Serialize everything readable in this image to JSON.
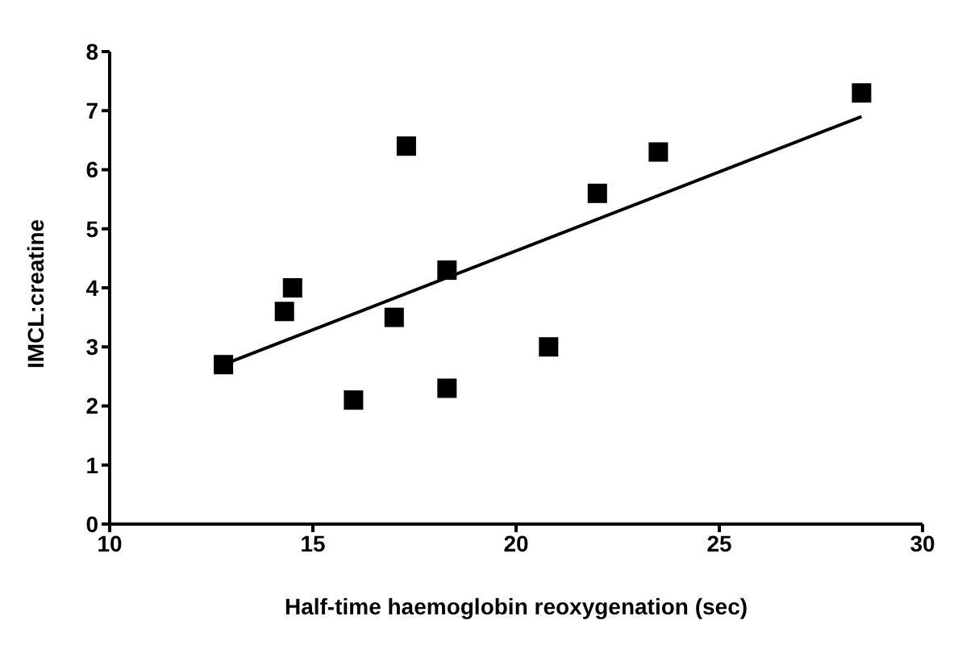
{
  "chart_data": {
    "type": "scatter",
    "xlabel": "Half-time haemoglobin reoxygenation (sec)",
    "ylabel": "IMCL:creatine",
    "xlim": [
      10,
      30
    ],
    "xticks": [
      10,
      15,
      20,
      25,
      30
    ],
    "ylim": [
      0,
      8
    ],
    "yticks": [
      0,
      1,
      2,
      3,
      4,
      5,
      6,
      7,
      8
    ],
    "grid": false,
    "legend": false,
    "marker": "square",
    "series": [
      {
        "color": "#000000",
        "x": [
          12.8,
          14.3,
          14.5,
          16.0,
          17.0,
          17.3,
          18.3,
          18.3,
          20.8,
          22.0,
          23.5,
          28.5
        ],
        "values": [
          2.7,
          3.6,
          4.0,
          2.1,
          3.5,
          6.4,
          4.3,
          2.3,
          3.0,
          5.6,
          6.3,
          7.3
        ]
      },
      {
        "type": "line",
        "color": "#000000",
        "x": [
          12.8,
          28.5
        ],
        "values": [
          2.7,
          6.9
        ],
        "marker": "none",
        "line_style": "solid"
      }
    ]
  }
}
